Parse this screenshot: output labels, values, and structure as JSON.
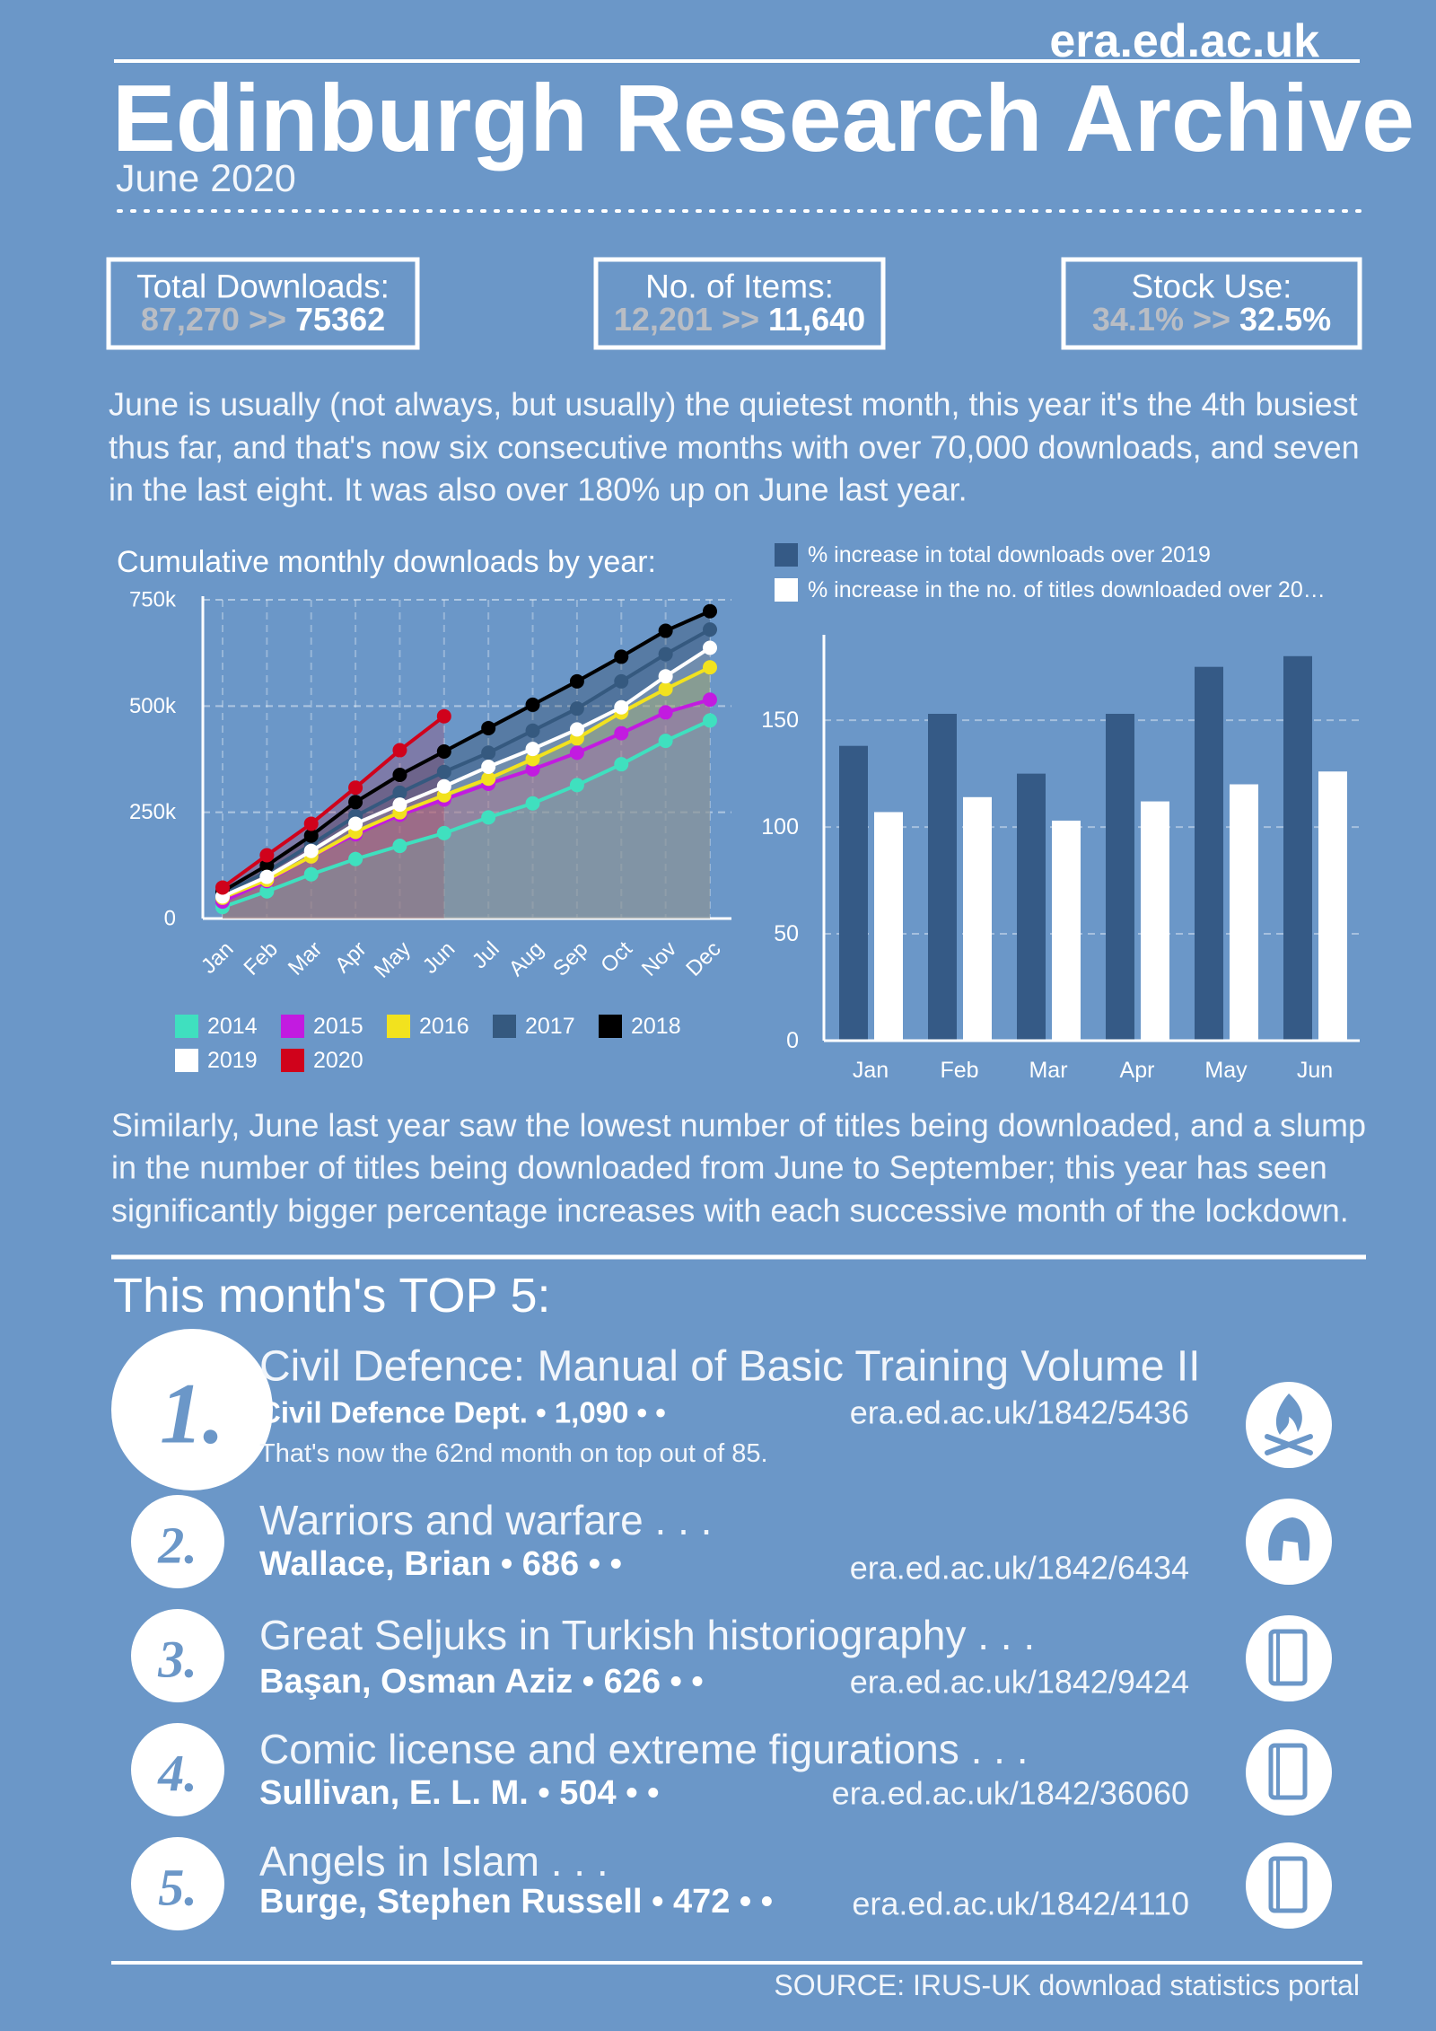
{
  "header": {
    "site": "era.ed.ac.uk",
    "title": "Edinburgh Research Archive",
    "subtitle": "June 2020"
  },
  "stats": [
    {
      "label": "Total Downloads:",
      "previous": "87,270",
      "separator": ">>",
      "current": "75362"
    },
    {
      "label": "No. of Items:",
      "previous": "12,201",
      "separator": ">>",
      "current": "11,640"
    },
    {
      "label": "Stock Use:",
      "previous": "34.1%",
      "separator": ">>",
      "current": "32.5%"
    }
  ],
  "intro": [
    "June is usually (not always, but usually) the quietest month, this year it's the 4th busiest",
    "thus far, and that's now six consecutive months with over  70,000 downloads, and seven",
    "in the last eight. It was also over 180% up on June  last year."
  ],
  "chart_data": [
    {
      "type": "line",
      "title": "Cumulative monthly downloads by year:",
      "categories": [
        "Jan",
        "Feb",
        "Mar",
        "Apr",
        "May",
        "Jun",
        "Jul",
        "Aug",
        "Sep",
        "Oct",
        "Nov",
        "Dec"
      ],
      "ylim": [
        0,
        750000
      ],
      "yticks": [
        0,
        {
          "value": 250000,
          "label": "250k"
        },
        {
          "value": 500000,
          "label": "500k"
        },
        {
          "value": 750000,
          "label": "750k"
        }
      ],
      "grid": true,
      "series": [
        {
          "name": "2014",
          "color": "#3fe0bf",
          "values": [
            27000,
            64000,
            104000,
            140000,
            171000,
            201000,
            238000,
            271000,
            314000,
            363000,
            418000,
            466000
          ]
        },
        {
          "name": "2015",
          "color": "#c21be0",
          "values": [
            40000,
            88000,
            146000,
            198000,
            244000,
            280000,
            317000,
            351000,
            390000,
            436000,
            485000,
            515000
          ]
        },
        {
          "name": "2016",
          "color": "#f2e21e",
          "values": [
            49000,
            91000,
            146000,
            204000,
            250000,
            290000,
            329000,
            375000,
            424000,
            485000,
            540000,
            591000
          ]
        },
        {
          "name": "2017",
          "color": "#35597f",
          "values": [
            58000,
            110000,
            174000,
            241000,
            296000,
            345000,
            390000,
            442000,
            494000,
            558000,
            622000,
            680000
          ]
        },
        {
          "name": "2018",
          "color": "#000000",
          "values": [
            64000,
            125000,
            195000,
            274000,
            338000,
            393000,
            448000,
            503000,
            558000,
            616000,
            677000,
            723000
          ]
        },
        {
          "name": "2019",
          "color": "#ffffff",
          "values": [
            52000,
            98000,
            159000,
            223000,
            268000,
            311000,
            357000,
            399000,
            445000,
            497000,
            570000,
            637000
          ]
        },
        {
          "name": "2020",
          "color": "#d0021b",
          "values": [
            73000,
            149000,
            223000,
            308000,
            396000,
            476000,
            null,
            null,
            null,
            null,
            null,
            null
          ]
        }
      ]
    },
    {
      "type": "bar",
      "categories": [
        "Jan",
        "Feb",
        "Mar",
        "Apr",
        "May",
        "Jun"
      ],
      "ylim": [
        0,
        190
      ],
      "yticks": [
        0,
        50,
        100,
        150
      ],
      "grid": true,
      "series": [
        {
          "name": "% increase in total downloads over 2019",
          "color": "#355a86",
          "values": [
            138,
            153,
            125,
            153,
            175,
            180
          ]
        },
        {
          "name": "% increase in the no. of titles downloaded over 20…",
          "color": "#ffffff",
          "values": [
            107,
            114,
            103,
            112,
            120,
            126
          ]
        }
      ]
    }
  ],
  "analysis": [
    "Similarly, June last year saw the lowest number of titles being downloaded, and a slump",
    "in the number of titles being downloaded from June to September; this year has seen",
    "significantly bigger percentage increases with each successive month of the lockdown."
  ],
  "top5": {
    "title": "This month's TOP 5:",
    "items": [
      {
        "rank": "1.",
        "title": "Civil Defence: Manual of Basic Training Volume II",
        "byline": "Civil Defence Dept. • 1,090 • •",
        "url": "era.ed.ac.uk/1842/5436",
        "note": "That's now the  62nd month on top out of 85."
      },
      {
        "rank": "2.",
        "title": "Warriors and warfare . . .",
        "byline": "Wallace, Brian • 686 • •",
        "url": "era.ed.ac.uk/1842/6434"
      },
      {
        "rank": "3.",
        "title": "Great Seljuks in Turkish historiography . . .",
        "byline": "Başan, Osman Aziz • 626 • •",
        "url": "era.ed.ac.uk/1842/9424"
      },
      {
        "rank": "4.",
        "title": "Comic license and extreme figurations  . . .",
        "byline": "Sullivan, E. L. M. • 504 • •",
        "url": "era.ed.ac.uk/1842/36060"
      },
      {
        "rank": "5.",
        "title": "Angels in Islam . . .",
        "byline": "Burge, Stephen Russell • 472 • •",
        "url": "era.ed.ac.uk/1842/4110"
      }
    ]
  },
  "footer": {
    "source": "SOURCE: IRUS-UK download statistics portal"
  }
}
